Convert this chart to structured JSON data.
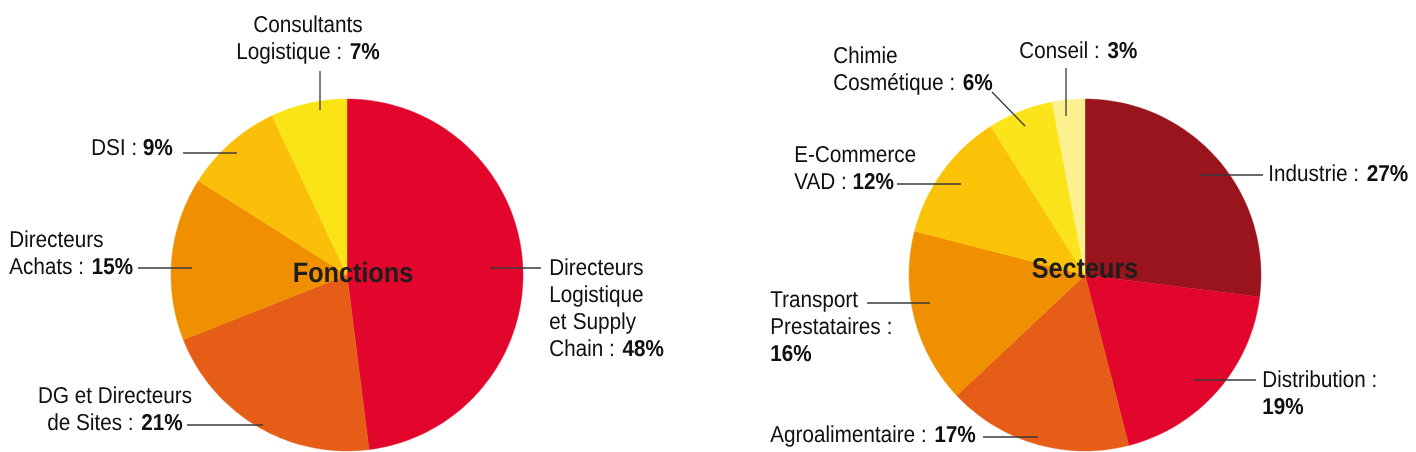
{
  "chart_data": [
    {
      "type": "pie",
      "title": "Fonctions",
      "categories": [
        "Directeurs Logistique et Supply Chain : **48%**",
        "DG et Directeurs de Sites : **21%**",
        "Directeurs Achats : **15%**",
        "DSI : **9%**",
        "Consultants Logistique : **7%**"
      ],
      "values": [
        48,
        21,
        15,
        9,
        7
      ],
      "colors": [
        "#e2062c",
        "#e65d17",
        "#f09000",
        "#fbbf0a",
        "#fbe416"
      ]
    },
    {
      "type": "pie",
      "title": "Secteurs",
      "categories": [
        "Industrie : **27%**",
        "Distribution : **19%**",
        "Agroalimentaire : **17%**",
        "Transport Prestataires : **16%**",
        "E-Commerce VAD : **12%**",
        "Chimie Cosmétique : **6%**",
        "Conseil : **3%**"
      ],
      "values": [
        27,
        19,
        17,
        16,
        12,
        6,
        3
      ],
      "colors": [
        "#9a141d",
        "#e2062c",
        "#e65d17",
        "#f09000",
        "#fbc308",
        "#fbe41a",
        "#fdf08e"
      ]
    }
  ]
}
